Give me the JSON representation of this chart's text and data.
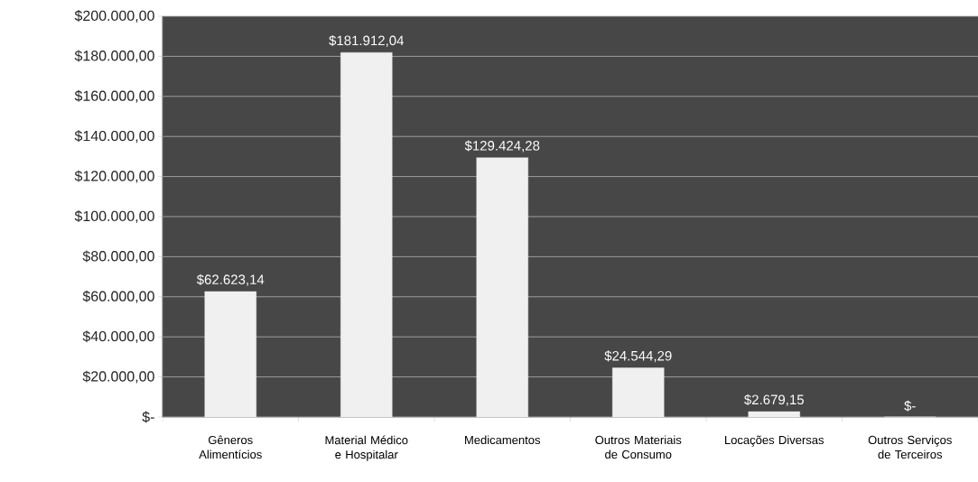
{
  "chart_data": {
    "type": "bar",
    "categories": [
      "Gêneros Alimentícios",
      "Material Médico e Hospitalar",
      "Medicamentos",
      "Outros Materiais de Consumo",
      "Locações Diversas",
      "Outros Serviços de Terceiros"
    ],
    "values": [
      62623.14,
      181912.04,
      129424.28,
      24544.29,
      2679.15,
      0
    ],
    "value_labels": [
      "$62.623,14",
      "$181.912,04",
      "$129.424,28",
      "$24.544,29",
      "$2.679,15",
      "$-"
    ],
    "color": "#f0f0f0",
    "ylim": [
      0,
      200000
    ],
    "yticks": [
      {
        "value": 0,
        "label": "$-"
      },
      {
        "value": 20000,
        "label": "$20.000,00"
      },
      {
        "value": 40000,
        "label": "$40.000,00"
      },
      {
        "value": 60000,
        "label": "$60.000,00"
      },
      {
        "value": 80000,
        "label": "$80.000,00"
      },
      {
        "value": 100000,
        "label": "$100.000,00"
      },
      {
        "value": 120000,
        "label": "$120.000,00"
      },
      {
        "value": 140000,
        "label": "$140.000,00"
      },
      {
        "value": 160000,
        "label": "$160.000,00"
      },
      {
        "value": 180000,
        "label": "$180.000,00"
      },
      {
        "value": 200000,
        "label": "$200.000,00"
      }
    ],
    "grid": "y"
  }
}
